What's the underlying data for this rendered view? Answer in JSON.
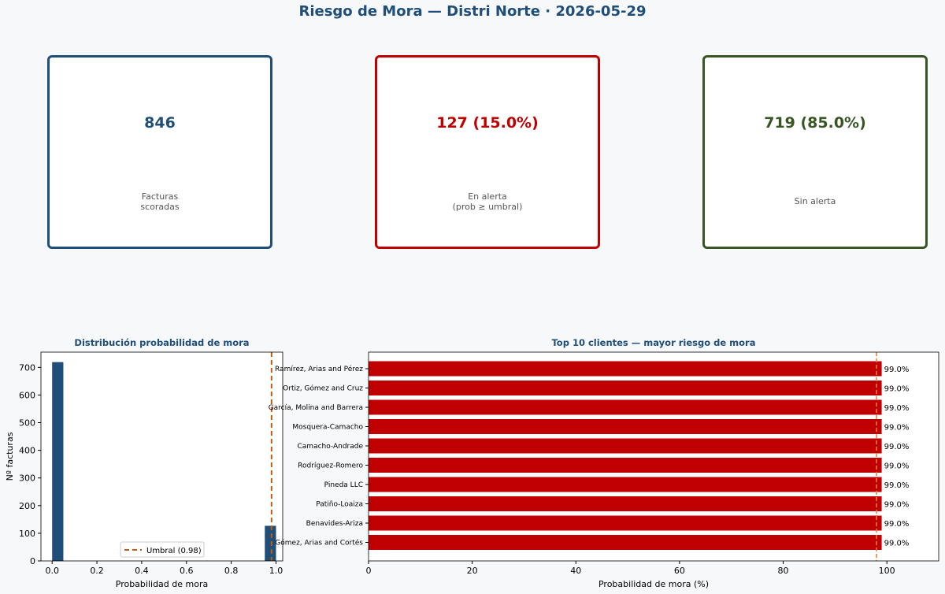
{
  "title": "Riesgo de Mora — Distri Norte  ·  2026-05-29",
  "kpis": [
    {
      "value": "846",
      "label_lines": [
        "Facturas",
        "scoradas"
      ],
      "color": "#1f4e79"
    },
    {
      "value": "127  (15.0%)",
      "label_lines": [
        "En alerta",
        "(prob ≥ umbral)"
      ],
      "color": "#c00000"
    },
    {
      "value": "719  (85.0%)",
      "label_lines": [
        "Sin alerta"
      ],
      "color": "#375623"
    }
  ],
  "chart_data": [
    {
      "type": "bar",
      "title": "Distribución probabilidad de mora",
      "xlabel": "Probabilidad de mora",
      "ylabel": "Nº facturas",
      "xlim": [
        -0.05,
        1.03
      ],
      "ylim": [
        0,
        755
      ],
      "xticks": [
        0.0,
        0.2,
        0.4,
        0.6,
        0.8,
        1.0
      ],
      "xtick_labels": [
        "0.0",
        "0.2",
        "0.4",
        "0.6",
        "0.8",
        "1.0"
      ],
      "yticks": [
        0,
        100,
        200,
        300,
        400,
        500,
        600,
        700
      ],
      "bins": [
        {
          "x0": 0.0,
          "x1": 0.05,
          "count": 719
        },
        {
          "x0": 0.95,
          "x1": 1.0,
          "count": 127
        }
      ],
      "threshold": 0.98,
      "legend": {
        "label": "Umbral (0.98)",
        "placement": "lower-right"
      },
      "colors": {
        "bar": "#1f4e79",
        "threshold": "#c55a11"
      }
    },
    {
      "type": "bar",
      "orientation": "horizontal",
      "title": "Top 10 clientes — mayor riesgo de mora",
      "xlabel": "Probabilidad de mora (%)",
      "xlim": [
        0,
        110
      ],
      "xticks": [
        0,
        20,
        40,
        60,
        80,
        100
      ],
      "categories": [
        "Ramírez, Arias and Pérez",
        "Ortiz, Gómez and Cruz",
        "García, Molina and Barrera",
        "Mosquera-Camacho",
        "Camacho-Andrade",
        "Rodríguez-Romero",
        "Pineda LLC",
        "Patiño-Loaiza",
        "Benavides-Ariza",
        "Gómez, Arias and Cortés"
      ],
      "values": [
        99.0,
        99.0,
        99.0,
        99.0,
        99.0,
        99.0,
        99.0,
        99.0,
        99.0,
        99.0
      ],
      "value_labels": [
        "99.0%",
        "99.0%",
        "99.0%",
        "99.0%",
        "99.0%",
        "99.0%",
        "99.0%",
        "99.0%",
        "99.0%",
        "99.0%"
      ],
      "threshold": 98,
      "colors": {
        "bar": "#c00000",
        "threshold": "#ed7d31"
      }
    }
  ]
}
